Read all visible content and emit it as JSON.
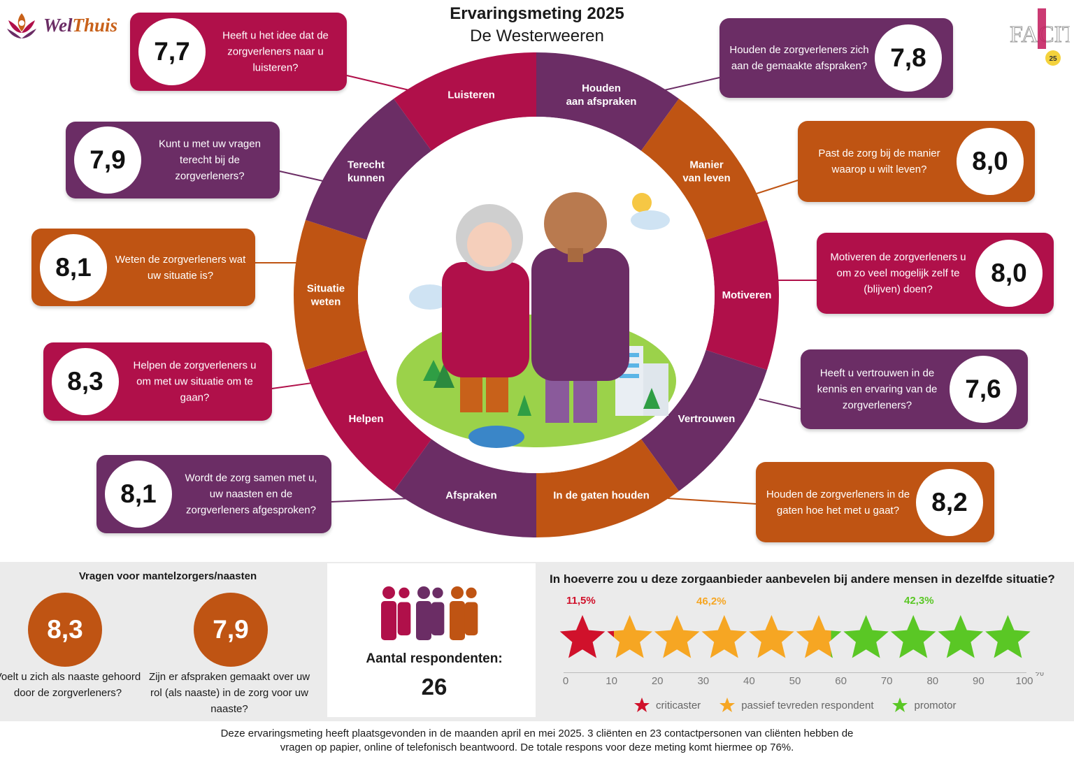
{
  "header": {
    "logo_wel": "Wel",
    "logo_thuis": "Thuis",
    "title": "Ervaringsmeting 2025",
    "subtitle": "De Westerweeren",
    "facit_badge": "25",
    "facit_text": "FACIT"
  },
  "colors": {
    "magenta": "#b0104a",
    "purple": "#6b2d65",
    "orange": "#bf5413",
    "red_star": "#d0112b",
    "yellow_star": "#f6a623",
    "green_star": "#5ac725"
  },
  "ring_segments": [
    {
      "label": "Luisteren",
      "color": "magenta"
    },
    {
      "label": "Houden aan afspraken",
      "color": "purple"
    },
    {
      "label": "Manier van leven",
      "color": "orange"
    },
    {
      "label": "Motiveren",
      "color": "magenta"
    },
    {
      "label": "Vertrouwen",
      "color": "purple"
    },
    {
      "label": "In de gaten houden",
      "color": "orange"
    },
    {
      "label": "Afspraken",
      "color": "purple"
    },
    {
      "label": "Helpen",
      "color": "magenta"
    },
    {
      "label": "Situatie weten",
      "color": "orange"
    },
    {
      "label": "Terecht kunnen",
      "color": "purple"
    }
  ],
  "cards": [
    {
      "score": "7,7",
      "question": "Heeft u het idee dat de zorgverleners naar u luisteren?",
      "color": "magenta"
    },
    {
      "score": "7,8",
      "question": "Houden de zorgverleners zich aan de gemaakte afspraken?",
      "color": "purple"
    },
    {
      "score": "7,9",
      "question": "Kunt u met uw vragen terecht bij de zorgverleners?",
      "color": "purple"
    },
    {
      "score": "8,0",
      "question": "Past de zorg bij de manier waarop u wilt leven?",
      "color": "orange"
    },
    {
      "score": "8,1",
      "question": "Weten de zorgverleners wat uw situatie is?",
      "color": "orange"
    },
    {
      "score": "8,0",
      "question": "Motiveren de zorgverleners u om zo veel mogelijk zelf te (blijven) doen?",
      "color": "magenta"
    },
    {
      "score": "8,3",
      "question": "Helpen de zorgverleners u om met uw situatie om te gaan?",
      "color": "magenta"
    },
    {
      "score": "7,6",
      "question": "Heeft u vertrouwen in de kennis en ervaring van de zorgverleners?",
      "color": "purple"
    },
    {
      "score": "8,1",
      "question": "Wordt de zorg samen met u, uw naasten en de zorgverleners afgesproken?",
      "color": "purple"
    },
    {
      "score": "8,2",
      "question": "Houden de zorgverleners in de gaten hoe het met u gaat?",
      "color": "orange"
    }
  ],
  "mantelzorg": {
    "title": "Vragen voor mantelzorgers/naasten",
    "items": [
      {
        "score": "8,3",
        "question": "Voelt u zich als naaste gehoord door de zorgverleners?"
      },
      {
        "score": "7,9",
        "question": "Zijn er afspraken gemaakt over uw rol (als naaste) in de zorg voor uw naaste?"
      }
    ]
  },
  "respondents": {
    "label": "Aantal respondenten:",
    "value": "26"
  },
  "recommend": {
    "title": "In hoeverre zou u deze zorgaanbieder aanbevelen bij andere mensen in dezelfde situatie?",
    "criticaster_pct": "11,5%",
    "passief_pct": "46,2%",
    "promotor_pct": "42,3%",
    "shares": [
      11.5,
      46.2,
      42.3
    ],
    "axis_ticks": [
      "0",
      "10",
      "20",
      "30",
      "40",
      "50",
      "60",
      "70",
      "80",
      "90",
      "100"
    ],
    "axis_unit": "%",
    "legend": {
      "criticaster": "criticaster",
      "passief": "passief tevreden respondent",
      "promotor": "promotor"
    }
  },
  "footer": {
    "line1": "Deze ervaringsmeting heeft plaatsgevonden in de maanden april en mei 2025. 3 cliënten en 23 contactpersonen van cliënten hebben de",
    "line2": "vragen op papier, online of telefonisch beantwoord. De totale respons voor deze meting komt hiermee op 76%."
  }
}
